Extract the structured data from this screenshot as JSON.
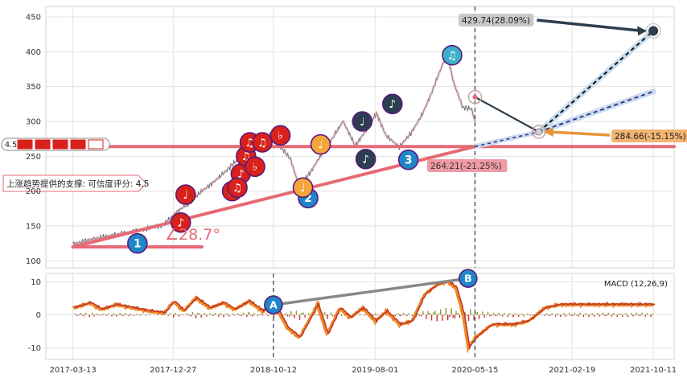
{
  "chart_data": [
    {
      "type": "line",
      "title": "",
      "xlabel": "",
      "ylabel": "",
      "ylim": [
        90,
        465
      ],
      "yticks": [
        100,
        150,
        200,
        250,
        300,
        350,
        400,
        450
      ],
      "x_range": [
        "2016-12-25",
        "2021-12-10"
      ],
      "grid": true,
      "series": [
        {
          "points": [
            [
              "2017-03-13",
              124
            ],
            [
              "2017-05-15",
              132
            ],
            [
              "2017-07-20",
              138
            ],
            [
              "2017-09-25",
              144
            ],
            [
              "2017-11-30",
              152
            ],
            [
              "2018-01-10",
              172
            ],
            [
              "2018-02-10",
              182
            ],
            [
              "2018-03-15",
              198
            ],
            [
              "2018-04-20",
              212
            ],
            [
              "2018-05-20",
              225
            ],
            [
              "2018-06-20",
              240
            ],
            [
              "2018-07-20",
              252
            ],
            [
              "2018-08-15",
              262
            ],
            [
              "2018-09-10",
              273
            ],
            [
              "2018-10-10",
              283
            ],
            [
              "2018-11-05",
              262
            ],
            [
              "2018-12-01",
              245
            ],
            [
              "2018-12-25",
              206
            ],
            [
              "2019-01-25",
              226
            ],
            [
              "2019-03-01",
              254
            ],
            [
              "2019-04-05",
              280
            ],
            [
              "2019-05-01",
              300
            ],
            [
              "2019-06-05",
              265
            ],
            [
              "2019-07-10",
              290
            ],
            [
              "2019-08-05",
              312
            ],
            [
              "2019-09-01",
              280
            ],
            [
              "2019-10-10",
              263
            ],
            [
              "2019-11-15",
              285
            ],
            [
              "2019-12-15",
              310
            ],
            [
              "2020-01-10",
              340
            ],
            [
              "2020-02-10",
              380
            ],
            [
              "2020-02-25",
              396
            ],
            [
              "2020-03-15",
              355
            ],
            [
              "2020-04-10",
              320
            ],
            [
              "2020-05-05",
              318
            ],
            [
              "2020-05-15",
              300
            ]
          ]
        }
      ],
      "trendlines": [
        {
          "from": [
            "2017-03-13",
            120
          ],
          "to": [
            "2020-05-15",
            264
          ]
        },
        {
          "from": [
            "2017-03-13",
            120
          ],
          "to": [
            "2018-03-20",
            120
          ]
        },
        {
          "from": [
            "2016-12-25",
            264
          ],
          "to": [
            "2021-12-10",
            264
          ]
        }
      ],
      "forecast_paths": [
        {
          "from": [
            "2020-05-15",
            335
          ],
          "to": [
            "2020-11-15",
            285
          ]
        },
        {
          "from": [
            "2020-11-15",
            285
          ],
          "to": [
            "2021-10-11",
            430
          ]
        },
        {
          "from": [
            "2020-11-15",
            285
          ],
          "to": [
            "2021-10-11",
            343
          ]
        },
        {
          "from": [
            "2020-05-15",
            264
          ],
          "to": [
            "2020-11-15",
            285
          ]
        }
      ],
      "markers": [
        {
          "label": "1",
          "x": "2017-09-15",
          "y": 125,
          "color": "#1f86c8"
        },
        {
          "label": "2",
          "x": "2019-01-20",
          "y": 190,
          "color": "#1f86c8"
        },
        {
          "label": "3",
          "x": "2019-11-05",
          "y": 245,
          "color": "#1f86c8"
        },
        {
          "label": "♪",
          "x": "2018-01-18",
          "y": 155,
          "color": "#d9211b"
        },
        {
          "label": "♩",
          "x": "2018-02-01",
          "y": 195,
          "color": "#d9211b"
        },
        {
          "label": "♫",
          "x": "2018-06-15",
          "y": 200,
          "color": "#d9211b"
        },
        {
          "label": "♪",
          "x": "2018-07-10",
          "y": 225,
          "color": "#d9211b"
        },
        {
          "label": "♫",
          "x": "2018-07-25",
          "y": 250,
          "color": "#d9211b"
        },
        {
          "label": "♭",
          "x": "2018-08-20",
          "y": 235,
          "color": "#d9211b"
        },
        {
          "label": "♫",
          "x": "2018-08-05",
          "y": 270,
          "color": "#d9211b"
        },
        {
          "label": "♫",
          "x": "2018-09-10",
          "y": 270,
          "color": "#d9211b"
        },
        {
          "label": "♭",
          "x": "2018-11-01",
          "y": 280,
          "color": "#d9211b"
        },
        {
          "label": "♫",
          "x": "2018-06-30",
          "y": 205,
          "color": "#d9211b"
        },
        {
          "label": "♩",
          "x": "2019-01-05",
          "y": 205,
          "color": "#f5a53a"
        },
        {
          "label": "♩",
          "x": "2019-02-25",
          "y": 267,
          "color": "#f5a53a"
        },
        {
          "label": "♩",
          "x": "2019-06-25",
          "y": 300,
          "color": "#2c3e50"
        },
        {
          "label": "♪",
          "x": "2019-07-05",
          "y": 246,
          "color": "#2c3e50"
        },
        {
          "label": "♪",
          "x": "2019-09-20",
          "y": 325,
          "color": "#2c3e50"
        },
        {
          "label": "♫",
          "x": "2020-03-10",
          "y": 395,
          "color": "#3bb0c9"
        }
      ],
      "annotations": [
        {
          "text": "429.74(28.09%)",
          "x": "2021-10-11",
          "y": 430,
          "style": "gray"
        },
        {
          "text": "284.66(-15.15%)",
          "x": "2020-11-15",
          "y": 285,
          "style": "orange"
        },
        {
          "text": "264.21(-21.25%)",
          "x": "2020-05-15",
          "y": 264,
          "style": "pink"
        },
        {
          "text": "∠28.7°",
          "style": "red"
        },
        {
          "text": "上涨趋势提供的支撑: 可信度评分: 4.5",
          "style": "callout"
        },
        {
          "text": "4.5",
          "style": "rating"
        }
      ],
      "rating": 4.5,
      "vline": "2020-05-15"
    },
    {
      "type": "line",
      "title": "",
      "legend": "MACD (12,26,9)",
      "ylim": [
        -13.5,
        12.5
      ],
      "yticks": [
        10,
        0,
        -10
      ],
      "xticks": [
        "2017-03-13",
        "2017-12-27",
        "2018-10-12",
        "2019-08-01",
        "2020-05-15",
        "2021-02-19",
        "2021-10-11"
      ],
      "x_range": [
        "2016-12-25",
        "2021-12-10"
      ],
      "series": [
        {
          "name": "MACD",
          "points": [
            [
              "2017-03-13",
              2
            ],
            [
              "2017-05-01",
              3.5
            ],
            [
              "2017-06-01",
              1.5
            ],
            [
              "2017-07-15",
              3
            ],
            [
              "2017-09-01",
              2
            ],
            [
              "2017-10-20",
              1
            ],
            [
              "2017-12-01",
              0.5
            ],
            [
              "2017-12-27",
              4
            ],
            [
              "2018-01-25",
              1
            ],
            [
              "2018-03-01",
              5
            ],
            [
              "2018-04-10",
              2
            ],
            [
              "2018-05-20",
              3.5
            ],
            [
              "2018-06-20",
              1.5
            ],
            [
              "2018-08-01",
              4
            ],
            [
              "2018-09-10",
              1
            ],
            [
              "2018-10-12",
              3.5
            ],
            [
              "2018-11-20",
              -4
            ],
            [
              "2018-12-25",
              -7
            ],
            [
              "2019-01-20",
              -2
            ],
            [
              "2019-02-15",
              3
            ],
            [
              "2019-03-15",
              -6
            ],
            [
              "2019-04-20",
              2
            ],
            [
              "2019-05-20",
              -1
            ],
            [
              "2019-06-25",
              2
            ],
            [
              "2019-08-01",
              -2
            ],
            [
              "2019-09-01",
              1
            ],
            [
              "2019-10-10",
              -3
            ],
            [
              "2019-11-15",
              -2
            ],
            [
              "2019-12-20",
              6
            ],
            [
              "2020-01-25",
              9
            ],
            [
              "2020-02-25",
              10
            ],
            [
              "2020-03-20",
              8
            ],
            [
              "2020-04-10",
              0
            ],
            [
              "2020-04-25",
              -10
            ],
            [
              "2020-05-15",
              -7
            ],
            [
              "2020-07-01",
              -3
            ],
            [
              "2020-09-01",
              -3
            ],
            [
              "2020-10-15",
              -2
            ],
            [
              "2020-12-01",
              2
            ],
            [
              "2021-01-15",
              3
            ],
            [
              "2021-10-11",
              3
            ]
          ]
        }
      ],
      "markers": [
        {
          "label": "A",
          "x": "2018-10-12",
          "y": 3,
          "color": "#1f86c8"
        },
        {
          "label": "B",
          "x": "2020-04-25",
          "y": 11,
          "color": "#1f86c8"
        }
      ],
      "vlines": [
        "2018-10-12",
        "2020-05-15"
      ]
    }
  ]
}
